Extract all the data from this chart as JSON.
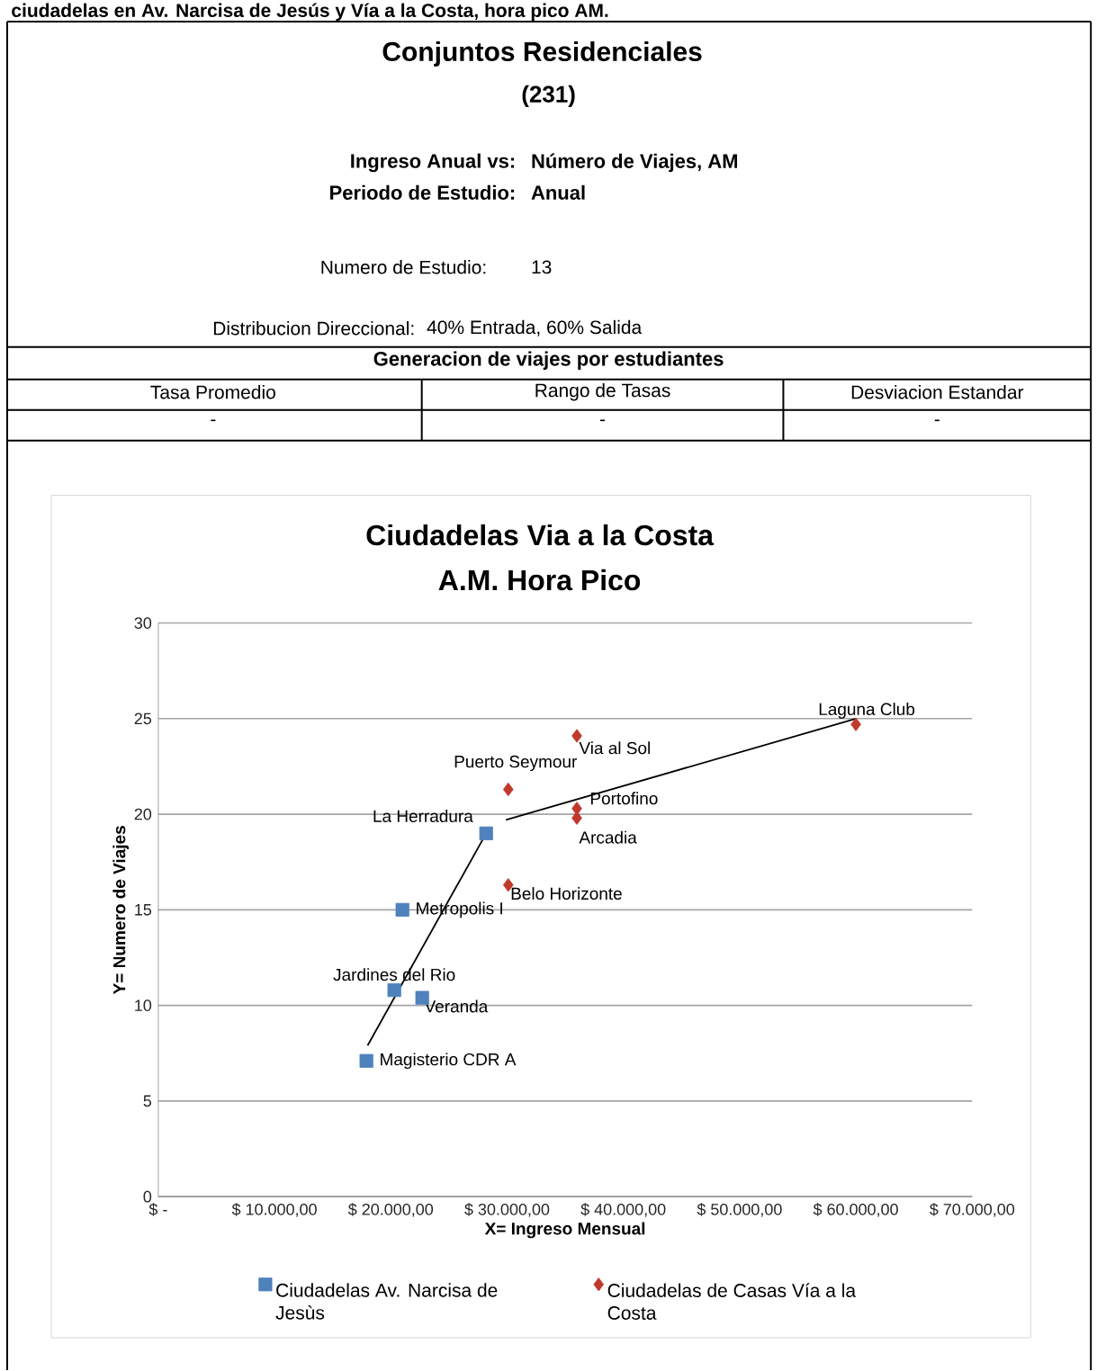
{
  "chart_data": {
    "type": "scatter",
    "title": "Ciudadelas Via a la Costa",
    "subtitle": "A.M. Hora Pico",
    "xlabel": "X= Ingreso Mensual",
    "ylabel": "Y= Numero de Viajes",
    "xlim": [
      0,
      70000
    ],
    "ylim": [
      0,
      30
    ],
    "xticks": [
      {
        "value": 0,
        "label": "$ -"
      },
      {
        "value": 10000,
        "label": "$ 10.000,00"
      },
      {
        "value": 20000,
        "label": "$ 20.000,00"
      },
      {
        "value": 30000,
        "label": "$ 30.000,00"
      },
      {
        "value": 40000,
        "label": "$ 40.000,00"
      },
      {
        "value": 50000,
        "label": "$ 50.000,00"
      },
      {
        "value": 60000,
        "label": "$ 60.000,00"
      },
      {
        "value": 70000,
        "label": "$ 70.000,00"
      }
    ],
    "yticks": [
      0,
      5,
      10,
      15,
      20,
      25,
      30
    ],
    "grid": "y",
    "legend": "bottom",
    "series": [
      {
        "name": "Ciudadelas Av. Narcisa de Jesùs",
        "color": "#4f81bd",
        "marker": "square",
        "x": [
          17900,
          20300,
          22700,
          21000,
          28200
        ],
        "values": [
          7.1,
          10.8,
          10.4,
          15.0,
          19.0
        ]
      },
      {
        "name": "Ciudadelas de Casas Vía a la Costa",
        "color": "#c0392b",
        "marker": "diamond",
        "x": [
          30100,
          30100,
          36000,
          36000,
          36000,
          60000
        ],
        "values": [
          21.3,
          16.3,
          24.1,
          20.3,
          19.8,
          24.7
        ]
      },
      {
        "type": "line",
        "color": "#000000",
        "marker": "none",
        "x": [
          18000,
          28200
        ],
        "values": [
          7.9,
          19.0
        ]
      },
      {
        "type": "line",
        "color": "#000000",
        "marker": "none",
        "x": [
          29900,
          60000
        ],
        "values": [
          19.7,
          25.0
        ]
      }
    ],
    "annotations": [
      "ciudadelas en Av. Narcisa de Jesús y Vía a la Costa, hora pico AM.",
      "Conjuntos Residenciales",
      "(231)",
      "Ingreso Anual vs:",
      "Número de Viajes, AM",
      "Periodo de Estudio:",
      "Anual",
      "Numero de Estudio:",
      "13",
      "Distribucion Direccional:",
      "40% Entrada, 60% Salida",
      "Generacion de viajes por estudiantes",
      "Tasa Promedio",
      "Rango de Tasas",
      "Desviacion Estandar",
      "-",
      "-",
      "-",
      {
        "text": "Magisterio CDR A",
        "x": 17900,
        "y": 7.1
      },
      {
        "text": "Jardines del Rio",
        "x": 20300,
        "y": 10.8
      },
      {
        "text": "Veranda",
        "x": 22700,
        "y": 10.4
      },
      {
        "text": "Metropolis I",
        "x": 21000,
        "y": 15.0
      },
      {
        "text": "La Herradura",
        "x": 28200,
        "y": 19.0
      },
      {
        "text": "Puerto Seymour",
        "x": 30100,
        "y": 21.3
      },
      {
        "text": "Belo Horizonte",
        "x": 30100,
        "y": 16.3
      },
      {
        "text": "Via al Sol",
        "x": 36000,
        "y": 24.1
      },
      {
        "text": "Portofino",
        "x": 36000,
        "y": 20.3
      },
      {
        "text": "Arcadia",
        "x": 36000,
        "y": 19.8
      },
      {
        "text": "Laguna Club",
        "x": 60000,
        "y": 24.7
      }
    ]
  }
}
